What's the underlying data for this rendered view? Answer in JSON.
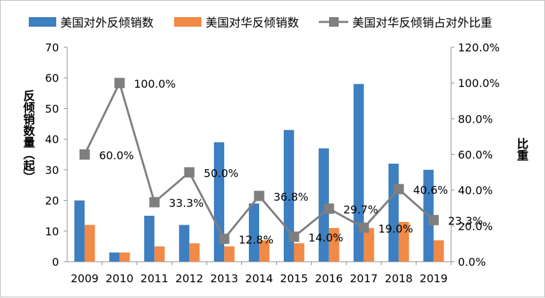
{
  "chart_data": {
    "type": "bar",
    "categories": [
      "2009",
      "2010",
      "2011",
      "2012",
      "2013",
      "2014",
      "2015",
      "2016",
      "2017",
      "2018",
      "2019"
    ],
    "series": [
      {
        "name": "美国对外反倾销数",
        "type": "bar",
        "axis": "left",
        "color": "#3d7fc0",
        "values": [
          20,
          3,
          15,
          12,
          39,
          19,
          43,
          37,
          58,
          32,
          30
        ]
      },
      {
        "name": "美国对华反倾销数",
        "type": "bar",
        "axis": "left",
        "color": "#f08a46",
        "values": [
          12,
          3,
          5,
          6,
          5,
          7,
          6,
          11,
          11,
          13,
          7
        ]
      },
      {
        "name": "美国对华反倾销占对外比重",
        "type": "line",
        "axis": "right",
        "color": "#7f7f7f",
        "values": [
          60.0,
          100.0,
          33.3,
          50.0,
          12.8,
          36.8,
          14.0,
          29.7,
          19.0,
          40.6,
          23.3
        ],
        "labels": [
          "60.0%",
          "100.0%",
          "33.3%",
          "50.0%",
          "12.8%",
          "36.8%",
          "14.0%",
          "29.7%",
          "19.0%",
          "40.6%",
          "23.3%"
        ]
      }
    ],
    "y_left": {
      "label": "反倾销数量（起）",
      "min": 0,
      "max": 70,
      "ticks": [
        "0",
        "10",
        "20",
        "30",
        "40",
        "50",
        "60",
        "70"
      ]
    },
    "y_right": {
      "label": "比重",
      "min": 0,
      "max": 120,
      "ticks": [
        "0.0%",
        "20.0%",
        "40.0%",
        "60.0%",
        "80.0%",
        "100.0%",
        "120.0%"
      ]
    },
    "legend_position": "top",
    "grid": false
  }
}
